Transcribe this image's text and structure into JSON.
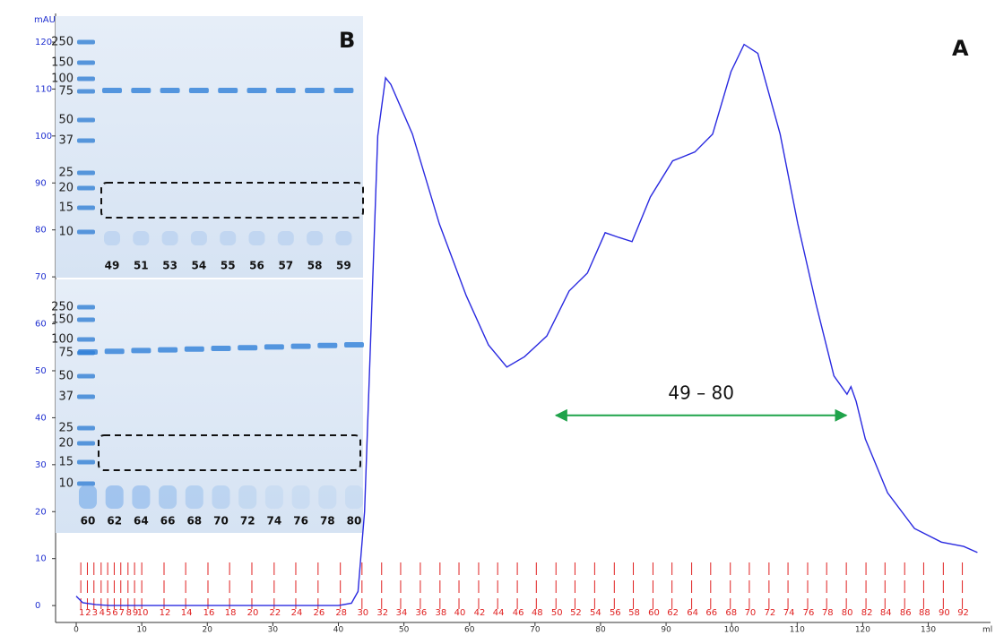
{
  "chart_data": {
    "type": "line",
    "x_label": "ml",
    "y_label": "mAU",
    "xlim": [
      -3.15,
      139.5
    ],
    "ylim": [
      -3.6,
      126.1
    ],
    "xticks": [
      0,
      10,
      20,
      30,
      40,
      50,
      60,
      70,
      80,
      90,
      100,
      110,
      120,
      130
    ],
    "yticks": [
      0,
      10,
      20,
      30,
      40,
      50,
      60,
      70,
      80,
      90,
      100,
      110,
      120
    ],
    "series": [
      {
        "color": "#2a2ae0",
        "x": [
          0,
          1,
          3,
          5,
          10,
          20,
          30,
          40,
          42,
          43,
          44,
          45,
          46,
          47.2,
          48,
          51.3,
          55.4,
          59.5,
          62.9,
          65.7,
          68.4,
          71.8,
          73.2,
          75.2,
          78,
          80.7,
          82.8,
          84.8,
          87.6,
          91,
          94.4,
          97.1,
          99.9,
          101.9,
          104,
          107.4,
          110.1,
          112.9,
          115.6,
          117.6,
          118.2,
          119,
          120.4,
          123.8,
          127.9,
          132,
          135.4,
          137.5
        ],
        "values": [
          2,
          0.6,
          0.2,
          0,
          0,
          0,
          0,
          0,
          0.5,
          3,
          20,
          60,
          100,
          112.4,
          111,
          100.4,
          81.3,
          66,
          55.5,
          50.8,
          53,
          57.4,
          61.3,
          67,
          70.8,
          79.4,
          78.4,
          77.5,
          87,
          94.7,
          96.6,
          100.4,
          113.7,
          119.5,
          117.6,
          100.4,
          81.3,
          64.1,
          48.9,
          45,
          46.6,
          43.5,
          35.5,
          24,
          16.4,
          13.5,
          12.6,
          11.3
        ]
      }
    ],
    "fractions": {
      "color": "#e02020",
      "labels": [
        1,
        2,
        3,
        4,
        5,
        6,
        7,
        8,
        9,
        10,
        12,
        14,
        16,
        18,
        20,
        22,
        24,
        26,
        28,
        30,
        32,
        34,
        36,
        38,
        40,
        42,
        44,
        46,
        48,
        50,
        52,
        54,
        56,
        58,
        60,
        62,
        64,
        66,
        68,
        70,
        72,
        74,
        76,
        78,
        80,
        82,
        84,
        86,
        88,
        90,
        92
      ],
      "x": [
        0.7,
        1.7,
        2.7,
        3.8,
        4.8,
        5.8,
        6.8,
        7.9,
        8.9,
        10.0,
        13.4,
        16.7,
        20.1,
        23.4,
        26.8,
        30.2,
        33.5,
        36.9,
        40.3,
        43.6,
        46.6,
        49.5,
        52.5,
        55.5,
        58.4,
        61.4,
        64.3,
        67.3,
        70.2,
        73.2,
        76.1,
        79.1,
        82.1,
        85.0,
        88.0,
        90.9,
        93.9,
        96.8,
        99.8,
        102.7,
        105.7,
        108.6,
        111.6,
        114.5,
        117.5,
        120.5,
        123.4,
        126.4,
        129.3,
        132.3,
        135.2
      ]
    },
    "panel_label": "A",
    "range_label": "49 – 80",
    "range_arrow": {
      "x": [
        73.2,
        117.5
      ],
      "y": 40.5,
      "color": "#1fa34a"
    }
  },
  "gel": {
    "panel_label": "B",
    "marker": [
      "250",
      "150",
      "100",
      "75",
      "50",
      "37",
      "25",
      "20",
      "15",
      "10"
    ],
    "top_lanes": [
      "49",
      "51",
      "53",
      "54",
      "55",
      "56",
      "57",
      "58",
      "59"
    ],
    "bottom_lanes": [
      "60",
      "62",
      "64",
      "66",
      "68",
      "70",
      "72",
      "74",
      "76",
      "78",
      "80"
    ]
  }
}
